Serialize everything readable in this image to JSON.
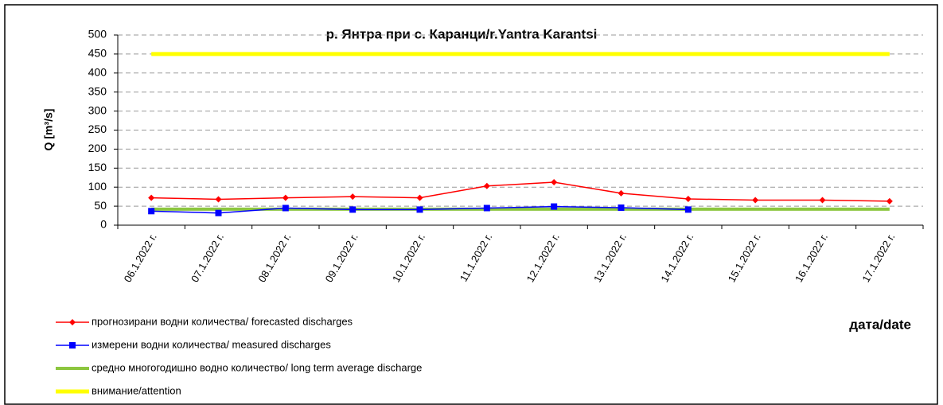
{
  "chart_data": {
    "type": "line",
    "title": "р. Янтра при с. Каранци/r.Yantra Karantsi",
    "y_label": "Q [m³/s]",
    "x_label": "дата/date",
    "categories": [
      "06.1.2022 г.",
      "07.1.2022 г.",
      "08.1.2022 г.",
      "09.1.2022 г.",
      "10.1.2022 г.",
      "11.1.2022 г.",
      "12.1.2022 г.",
      "13.1.2022 г.",
      "14.1.2022 г.",
      "15.1.2022 г.",
      "16.1.2022 г.",
      "17.1.2022 г."
    ],
    "series": [
      {
        "name": "прогнозирани водни количества/ forecasted discharges",
        "color": "#ff0000",
        "marker": "diamond",
        "values": [
          72,
          68,
          72,
          75,
          72,
          103,
          113,
          84,
          69,
          66,
          66,
          63
        ]
      },
      {
        "name": "измерени водни количества/ measured discharges",
        "color": "#0000ff",
        "marker": "square",
        "values": [
          37,
          32,
          45,
          41,
          41,
          45,
          49,
          46,
          41,
          null,
          null,
          null
        ]
      },
      {
        "name": "средно многогодишно водно количество/ long term average discharge",
        "color": "#8cc63f",
        "marker": "none",
        "values": [
          42,
          42,
          42,
          42,
          42,
          42,
          42,
          42,
          42,
          42,
          42,
          42
        ]
      },
      {
        "name": "внимание/attention",
        "color": "#ffff00",
        "marker": "none",
        "values": [
          450,
          450,
          450,
          450,
          450,
          450,
          450,
          450,
          450,
          450,
          450,
          450
        ]
      }
    ],
    "ylim": [
      0,
      500
    ],
    "yticks": [
      0,
      50,
      100,
      150,
      200,
      250,
      300,
      350,
      400,
      450,
      500
    ],
    "grid": true
  }
}
